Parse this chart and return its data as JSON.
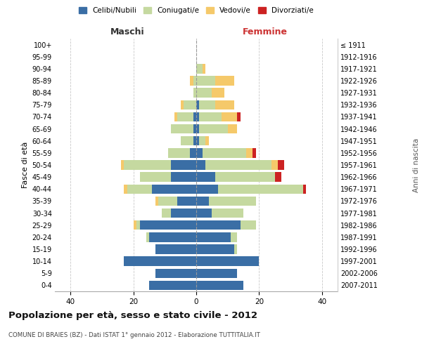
{
  "age_groups": [
    "0-4",
    "5-9",
    "10-14",
    "15-19",
    "20-24",
    "25-29",
    "30-34",
    "35-39",
    "40-44",
    "45-49",
    "50-54",
    "55-59",
    "60-64",
    "65-69",
    "70-74",
    "75-79",
    "80-84",
    "85-89",
    "90-94",
    "95-99",
    "100+"
  ],
  "birth_years": [
    "2007-2011",
    "2002-2006",
    "1997-2001",
    "1992-1996",
    "1987-1991",
    "1982-1986",
    "1977-1981",
    "1972-1976",
    "1967-1971",
    "1962-1966",
    "1957-1961",
    "1952-1956",
    "1947-1951",
    "1942-1946",
    "1937-1941",
    "1932-1936",
    "1927-1931",
    "1922-1926",
    "1917-1921",
    "1912-1916",
    "≤ 1911"
  ],
  "male": {
    "celibi": [
      15,
      13,
      23,
      13,
      15,
      18,
      8,
      6,
      14,
      8,
      8,
      2,
      1,
      1,
      1,
      0,
      0,
      0,
      0,
      0,
      0
    ],
    "coniugati": [
      0,
      0,
      0,
      0,
      1,
      1,
      3,
      6,
      8,
      10,
      15,
      7,
      4,
      7,
      5,
      4,
      1,
      1,
      0,
      0,
      0
    ],
    "vedovi": [
      0,
      0,
      0,
      0,
      0,
      1,
      0,
      1,
      1,
      0,
      1,
      0,
      0,
      0,
      1,
      1,
      0,
      1,
      0,
      0,
      0
    ],
    "divorziati": [
      0,
      0,
      0,
      0,
      0,
      0,
      0,
      0,
      0,
      0,
      0,
      0,
      0,
      0,
      0,
      0,
      0,
      0,
      0,
      0,
      0
    ]
  },
  "female": {
    "celibi": [
      15,
      13,
      20,
      12,
      11,
      14,
      5,
      4,
      7,
      6,
      3,
      2,
      1,
      1,
      1,
      1,
      0,
      0,
      0,
      0,
      0
    ],
    "coniugati": [
      0,
      0,
      0,
      1,
      2,
      5,
      10,
      15,
      27,
      19,
      21,
      14,
      2,
      9,
      7,
      5,
      5,
      6,
      2,
      0,
      0
    ],
    "vedovi": [
      0,
      0,
      0,
      0,
      0,
      0,
      0,
      0,
      0,
      0,
      2,
      2,
      1,
      3,
      5,
      6,
      4,
      6,
      1,
      0,
      0
    ],
    "divorziati": [
      0,
      0,
      0,
      0,
      0,
      0,
      0,
      0,
      1,
      2,
      2,
      1,
      0,
      0,
      1,
      0,
      0,
      0,
      0,
      0,
      0
    ]
  },
  "colors": {
    "celibi": "#3a6ea5",
    "coniugati": "#c5d9a0",
    "vedovi": "#f5c96a",
    "divorziati": "#cc2222"
  },
  "xlim": 45,
  "title": "Popolazione per età, sesso e stato civile - 2012",
  "subtitle": "COMUNE DI BRAIES (BZ) - Dati ISTAT 1° gennaio 2012 - Elaborazione TUTTITALIA.IT",
  "legend_labels": [
    "Celibi/Nubili",
    "Coniugati/e",
    "Vedovi/e",
    "Divorziati/e"
  ],
  "ylabel_left": "Fasce di età",
  "ylabel_right": "Anni di nascita",
  "xlabel_maschi": "Maschi",
  "xlabel_femmine": "Femmine"
}
